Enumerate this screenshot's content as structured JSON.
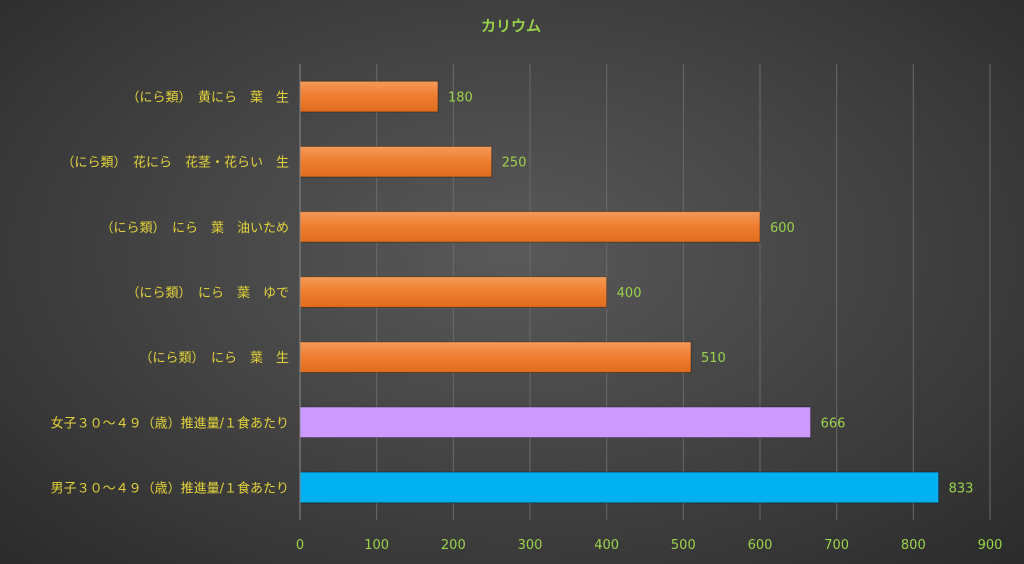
{
  "chart_data": {
    "type": "bar",
    "orientation": "horizontal",
    "title": "カリウム",
    "xlabel": "",
    "ylabel": "",
    "xlim": [
      0,
      900
    ],
    "ticks": [
      0,
      100,
      200,
      300,
      400,
      500,
      600,
      700,
      800,
      900
    ],
    "grid": true,
    "legend": "none",
    "categories": [
      "（にら類）　黄にら　葉　生",
      "（にら類）　花にら　花茎・花らい　生",
      "（にら類）　にら　葉　油いため",
      "（にら類）　にら　葉　ゆで",
      "（にら類）　にら　葉　生",
      "女子３０～４９（歳）推進量/１食あたり",
      "男子３０～４９（歳）推進量/１食あたり"
    ],
    "values": [
      180,
      250,
      600,
      400,
      510,
      666,
      833
    ],
    "bar_colors": [
      "#ed7d31",
      "#ed7d31",
      "#ed7d31",
      "#ed7d31",
      "#ed7d31",
      "#cc99ff",
      "#00b0f0"
    ]
  }
}
